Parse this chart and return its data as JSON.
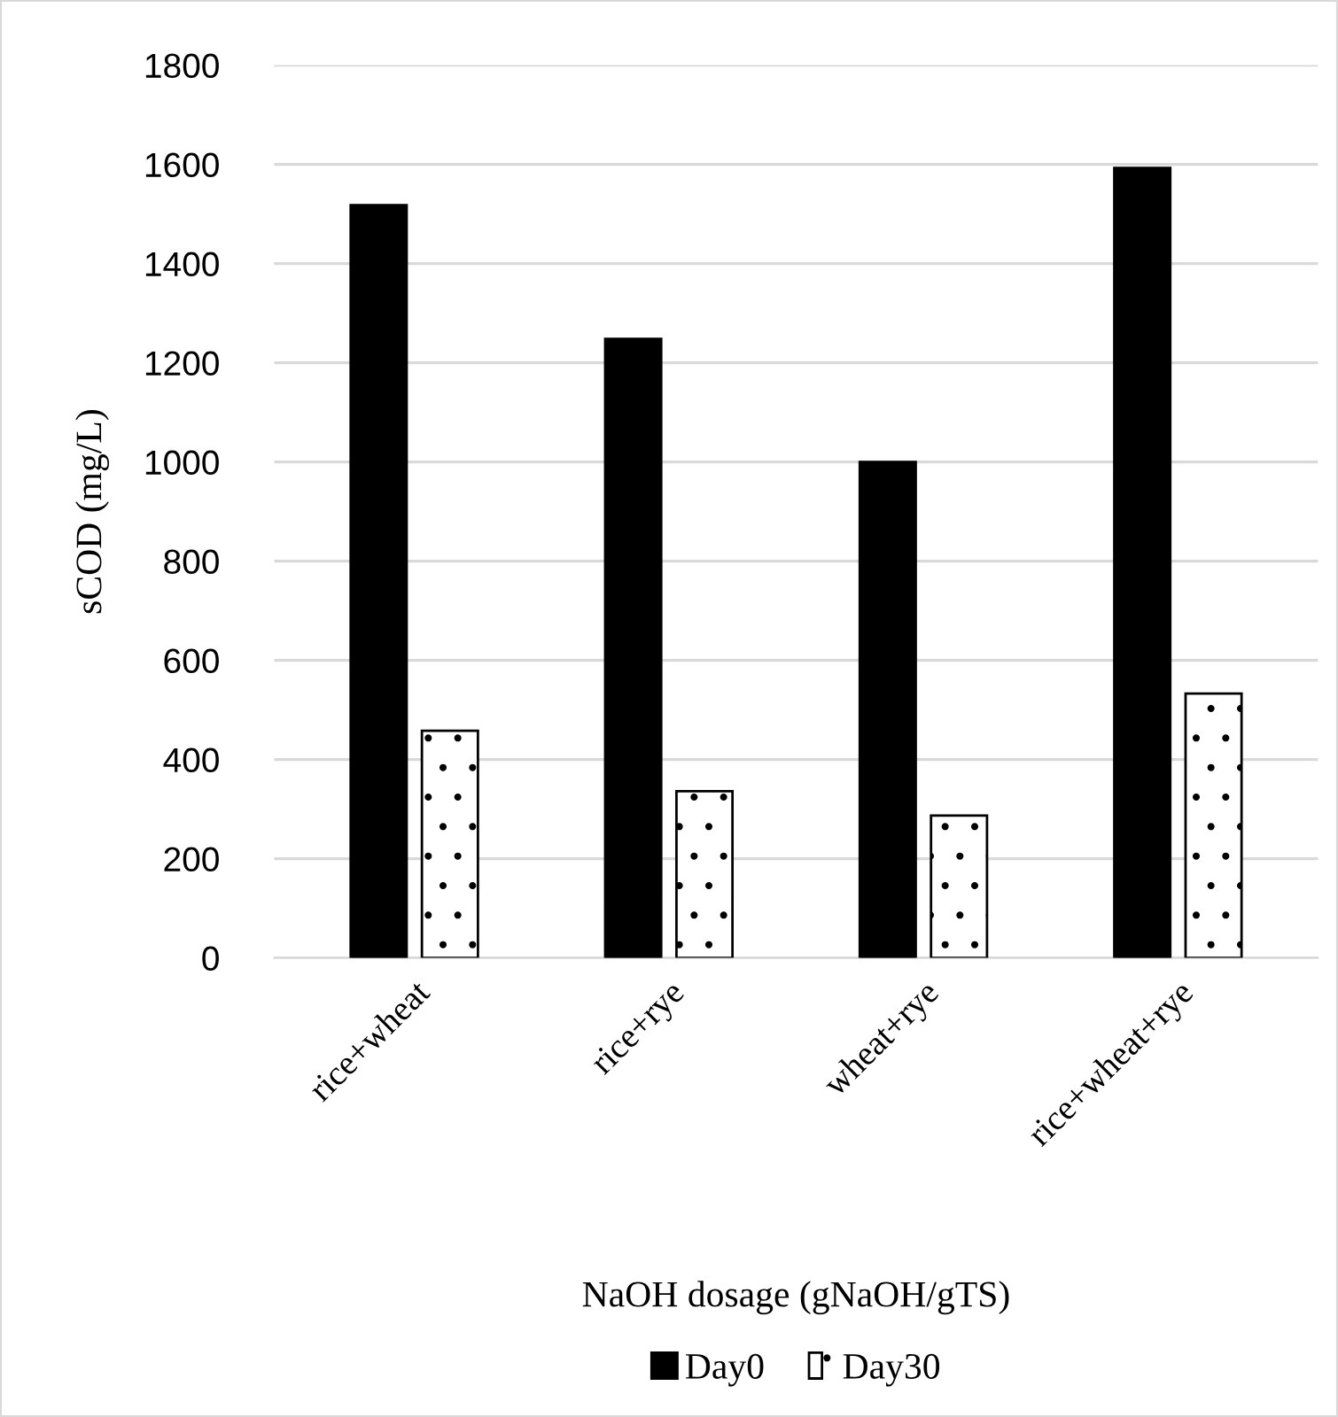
{
  "chart_data": {
    "type": "bar",
    "xlabel": "NaOH dosage (gNaOH/gTS)",
    "ylabel": "sCOD (mg/L)",
    "categories": [
      "rice+wheat",
      "rice+rye",
      "wheat+rye",
      "rice+wheat+rye"
    ],
    "series": [
      {
        "name": "Day0",
        "color": "#000000",
        "values": [
          1518,
          1248,
          1000,
          1593
        ]
      },
      {
        "name": "Day30",
        "color": "#ffffff",
        "values": [
          458,
          336,
          287,
          533
        ]
      }
    ],
    "ylim": [
      0,
      1800
    ],
    "yticks": [
      0,
      200,
      400,
      600,
      800,
      1000,
      1200,
      1400,
      1600,
      1800
    ],
    "grid": "y",
    "legend": "bottom"
  }
}
